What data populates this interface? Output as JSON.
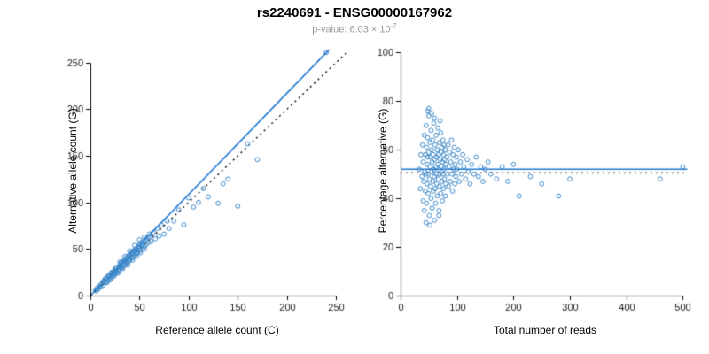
{
  "header": {
    "title": "rs2240691 - ENSG00000167962",
    "pvalue_base": "p-value: 6.03 × 10",
    "pvalue_exp": "-7"
  },
  "colors": {
    "points": "#3a87c8",
    "regression_line": "#1f78d4",
    "identity_line": "#000000",
    "axis": "#000000",
    "subtitle": "#9a9a9a"
  },
  "chart_data": "see charts",
  "charts": [
    {
      "type": "scatter",
      "xlabel": "Reference allele count (C)",
      "ylabel": "Alternative allele count (G)",
      "xrange": [
        0,
        258
      ],
      "yrange": [
        0,
        266
      ],
      "xticks": [
        0,
        50,
        100,
        150,
        200,
        250
      ],
      "yticks": [
        0,
        50,
        100,
        150,
        200,
        250
      ],
      "lines": [
        {
          "style": "solid",
          "color": "#1f78d4",
          "x": [
            1,
            243
          ],
          "y": [
            1,
            264
          ]
        },
        {
          "style": "dotted",
          "color": "#000000",
          "x": [
            0,
            260
          ],
          "y": [
            0,
            260
          ]
        }
      ],
      "points": [
        [
          10,
          9
        ],
        [
          12,
          13
        ],
        [
          13,
          11
        ],
        [
          14,
          16
        ],
        [
          15,
          14
        ],
        [
          15,
          18
        ],
        [
          16,
          15
        ],
        [
          17,
          19
        ],
        [
          18,
          16
        ],
        [
          18,
          21
        ],
        [
          19,
          18
        ],
        [
          20,
          22
        ],
        [
          20,
          17
        ],
        [
          21,
          24
        ],
        [
          22,
          20
        ],
        [
          22,
          25
        ],
        [
          23,
          22
        ],
        [
          24,
          26
        ],
        [
          24,
          21
        ],
        [
          25,
          27
        ],
        [
          25,
          23
        ],
        [
          26,
          29
        ],
        [
          27,
          25
        ],
        [
          27,
          30
        ],
        [
          28,
          27
        ],
        [
          29,
          31
        ],
        [
          29,
          26
        ],
        [
          30,
          33
        ],
        [
          30,
          28
        ],
        [
          31,
          35
        ],
        [
          32,
          30
        ],
        [
          32,
          36
        ],
        [
          33,
          31
        ],
        [
          34,
          37
        ],
        [
          34,
          32
        ],
        [
          35,
          38
        ],
        [
          35,
          33
        ],
        [
          36,
          40
        ],
        [
          37,
          35
        ],
        [
          37,
          41
        ],
        [
          38,
          36
        ],
        [
          39,
          43
        ],
        [
          39,
          37
        ],
        [
          40,
          44
        ],
        [
          40,
          38
        ],
        [
          41,
          45
        ],
        [
          42,
          40
        ],
        [
          42,
          46
        ],
        [
          43,
          41
        ],
        [
          44,
          48
        ],
        [
          44,
          42
        ],
        [
          45,
          49
        ],
        [
          46,
          44
        ],
        [
          46,
          50
        ],
        [
          47,
          45
        ],
        [
          48,
          52
        ],
        [
          48,
          46
        ],
        [
          49,
          53
        ],
        [
          50,
          48
        ],
        [
          50,
          55
        ],
        [
          51,
          49
        ],
        [
          52,
          57
        ],
        [
          53,
          51
        ],
        [
          54,
          58
        ],
        [
          55,
          53
        ],
        [
          56,
          60
        ],
        [
          57,
          55
        ],
        [
          58,
          62
        ],
        [
          59,
          57
        ],
        [
          60,
          63
        ],
        [
          5,
          6
        ],
        [
          6,
          5
        ],
        [
          7,
          8
        ],
        [
          8,
          7
        ],
        [
          9,
          10
        ],
        [
          11,
          12
        ],
        [
          13,
          15
        ],
        [
          16,
          18
        ],
        [
          19,
          21
        ],
        [
          23,
          24
        ],
        [
          26,
          27
        ],
        [
          31,
          32
        ],
        [
          36,
          37
        ],
        [
          41,
          43
        ],
        [
          45,
          47
        ],
        [
          52,
          54
        ],
        [
          28,
          24
        ],
        [
          33,
          29
        ],
        [
          38,
          33
        ],
        [
          43,
          38
        ],
        [
          47,
          42
        ],
        [
          51,
          46
        ],
        [
          55,
          50
        ],
        [
          21,
          18
        ],
        [
          17,
          14
        ],
        [
          25,
          30
        ],
        [
          30,
          36
        ],
        [
          35,
          42
        ],
        [
          40,
          48
        ],
        [
          45,
          54
        ],
        [
          50,
          60
        ],
        [
          55,
          63
        ],
        [
          60,
          66
        ],
        [
          62,
          58
        ],
        [
          64,
          68
        ],
        [
          66,
          61
        ],
        [
          68,
          72
        ],
        [
          70,
          64
        ],
        [
          72,
          76
        ],
        [
          75,
          66
        ],
        [
          78,
          80
        ],
        [
          80,
          72
        ],
        [
          85,
          80
        ],
        [
          90,
          92
        ],
        [
          95,
          76
        ],
        [
          100,
          105
        ],
        [
          105,
          95
        ],
        [
          110,
          100
        ],
        [
          115,
          115
        ],
        [
          120,
          106
        ],
        [
          130,
          99
        ],
        [
          135,
          120
        ],
        [
          140,
          125
        ],
        [
          150,
          96
        ],
        [
          160,
          163
        ],
        [
          170,
          146
        ],
        [
          240,
          261
        ]
      ]
    },
    {
      "type": "scatter",
      "xlabel": "Total number of reads",
      "ylabel": "Percentage alternative (G)",
      "xrange": [
        0,
        512
      ],
      "yrange": [
        0,
        102
      ],
      "xticks": [
        0,
        100,
        200,
        300,
        400,
        500
      ],
      "yticks": [
        0,
        20,
        40,
        60,
        80,
        100
      ],
      "lines": [
        {
          "style": "solid",
          "color": "#1f78d4",
          "x": [
            0,
            508
          ],
          "y": [
            52,
            52
          ]
        },
        {
          "style": "dotted",
          "color": "#000000",
          "x": [
            0,
            508
          ],
          "y": [
            50.5,
            50.5
          ]
        }
      ],
      "points": [
        [
          33,
          52
        ],
        [
          35,
          44
        ],
        [
          36,
          58
        ],
        [
          38,
          49
        ],
        [
          39,
          62
        ],
        [
          40,
          39
        ],
        [
          40,
          55
        ],
        [
          41,
          47
        ],
        [
          42,
          66
        ],
        [
          42,
          35
        ],
        [
          43,
          51
        ],
        [
          44,
          58
        ],
        [
          44,
          43
        ],
        [
          45,
          70
        ],
        [
          45,
          50
        ],
        [
          46,
          61
        ],
        [
          46,
          38
        ],
        [
          47,
          54
        ],
        [
          47,
          46
        ],
        [
          48,
          65
        ],
        [
          48,
          57
        ],
        [
          48,
          76
        ],
        [
          49,
          42
        ],
        [
          49,
          50
        ],
        [
          50,
          74
        ],
        [
          50,
          59
        ],
        [
          50,
          77
        ],
        [
          51,
          48
        ],
        [
          51,
          33
        ],
        [
          52,
          63
        ],
        [
          52,
          53
        ],
        [
          52,
          29
        ],
        [
          53,
          45
        ],
        [
          53,
          57
        ],
        [
          54,
          68
        ],
        [
          54,
          40
        ],
        [
          55,
          51
        ],
        [
          55,
          60
        ],
        [
          55,
          75
        ],
        [
          56,
          36
        ],
        [
          56,
          55
        ],
        [
          57,
          64
        ],
        [
          57,
          47
        ],
        [
          58,
          58
        ],
        [
          58,
          43
        ],
        [
          59,
          52
        ],
        [
          59,
          71
        ],
        [
          60,
          49
        ],
        [
          60,
          56
        ],
        [
          60,
          31
        ],
        [
          60,
          73
        ],
        [
          45,
          30
        ],
        [
          61,
          62
        ],
        [
          61,
          44
        ],
        [
          62,
          53
        ],
        [
          62,
          38
        ],
        [
          63,
          66
        ],
        [
          63,
          50
        ],
        [
          64,
          57
        ],
        [
          64,
          46
        ],
        [
          65,
          60
        ],
        [
          65,
          41
        ],
        [
          66,
          54
        ],
        [
          66,
          69
        ],
        [
          67,
          48
        ],
        [
          67,
          58
        ],
        [
          68,
          52
        ],
        [
          68,
          35
        ],
        [
          68,
          33
        ],
        [
          69,
          63
        ],
        [
          69,
          45
        ],
        [
          70,
          56
        ],
        [
          70,
          50
        ],
        [
          70,
          72
        ],
        [
          71,
          67
        ],
        [
          71,
          42
        ],
        [
          72,
          59
        ],
        [
          72,
          53
        ],
        [
          73,
          47
        ],
        [
          73,
          61
        ],
        [
          74,
          55
        ],
        [
          74,
          39
        ],
        [
          75,
          64
        ],
        [
          75,
          50
        ],
        [
          76,
          58
        ],
        [
          76,
          44
        ],
        [
          77,
          52
        ],
        [
          77,
          62
        ],
        [
          78,
          48
        ],
        [
          78,
          56
        ],
        [
          79,
          60
        ],
        [
          79,
          41
        ],
        [
          80,
          54
        ],
        [
          80,
          46
        ],
        [
          82,
          57
        ],
        [
          83,
          50
        ],
        [
          84,
          62
        ],
        [
          85,
          45
        ],
        [
          86,
          53
        ],
        [
          87,
          59
        ],
        [
          88,
          47
        ],
        [
          89,
          55
        ],
        [
          90,
          64
        ],
        [
          91,
          50
        ],
        [
          92,
          43
        ],
        [
          93,
          58
        ],
        [
          94,
          52
        ],
        [
          95,
          61
        ],
        [
          96,
          46
        ],
        [
          97,
          54
        ],
        [
          98,
          49
        ],
        [
          99,
          57
        ],
        [
          100,
          52
        ],
        [
          102,
          60
        ],
        [
          104,
          47
        ],
        [
          106,
          55
        ],
        [
          108,
          50
        ],
        [
          110,
          58
        ],
        [
          112,
          53
        ],
        [
          115,
          48
        ],
        [
          118,
          56
        ],
        [
          120,
          51
        ],
        [
          123,
          46
        ],
        [
          126,
          54
        ],
        [
          130,
          50
        ],
        [
          134,
          57
        ],
        [
          138,
          49
        ],
        [
          142,
          53
        ],
        [
          146,
          47
        ],
        [
          150,
          52
        ],
        [
          155,
          55
        ],
        [
          160,
          50
        ],
        [
          170,
          48
        ],
        [
          180,
          53
        ],
        [
          190,
          47
        ],
        [
          200,
          54
        ],
        [
          210,
          41
        ],
        [
          230,
          49
        ],
        [
          250,
          46
        ],
        [
          280,
          41
        ],
        [
          300,
          48
        ],
        [
          460,
          48
        ],
        [
          500,
          53
        ]
      ]
    }
  ]
}
